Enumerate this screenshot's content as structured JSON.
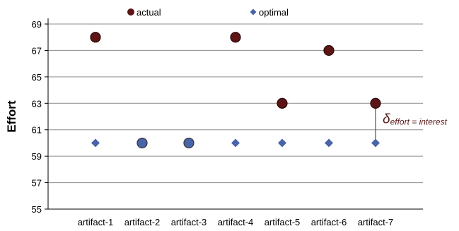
{
  "chart_data": {
    "type": "scatter",
    "categories": [
      "artifact-1",
      "artifact-2",
      "artifact-3",
      "artifact-4",
      "artifact-5",
      "artifact-6",
      "artifact-7"
    ],
    "series": [
      {
        "name": "actual",
        "marker": "circle",
        "color": "#5c1414",
        "values": [
          68,
          60,
          60,
          68,
          63,
          67,
          63
        ]
      },
      {
        "name": "optimal",
        "marker": "diamond",
        "color": "#4a64a8",
        "values": [
          60,
          60,
          60,
          60,
          60,
          60,
          60
        ]
      }
    ],
    "ylabel": "Effort",
    "xlabel": "",
    "ylim": [
      55,
      69
    ],
    "yticks": [
      55,
      57,
      59,
      61,
      63,
      65,
      67,
      69
    ],
    "grid": true,
    "legend": "top",
    "annotation": {
      "symbol": "δ",
      "subscript": "effort = interest",
      "category": "artifact-7",
      "from": 60,
      "to": 63
    }
  }
}
